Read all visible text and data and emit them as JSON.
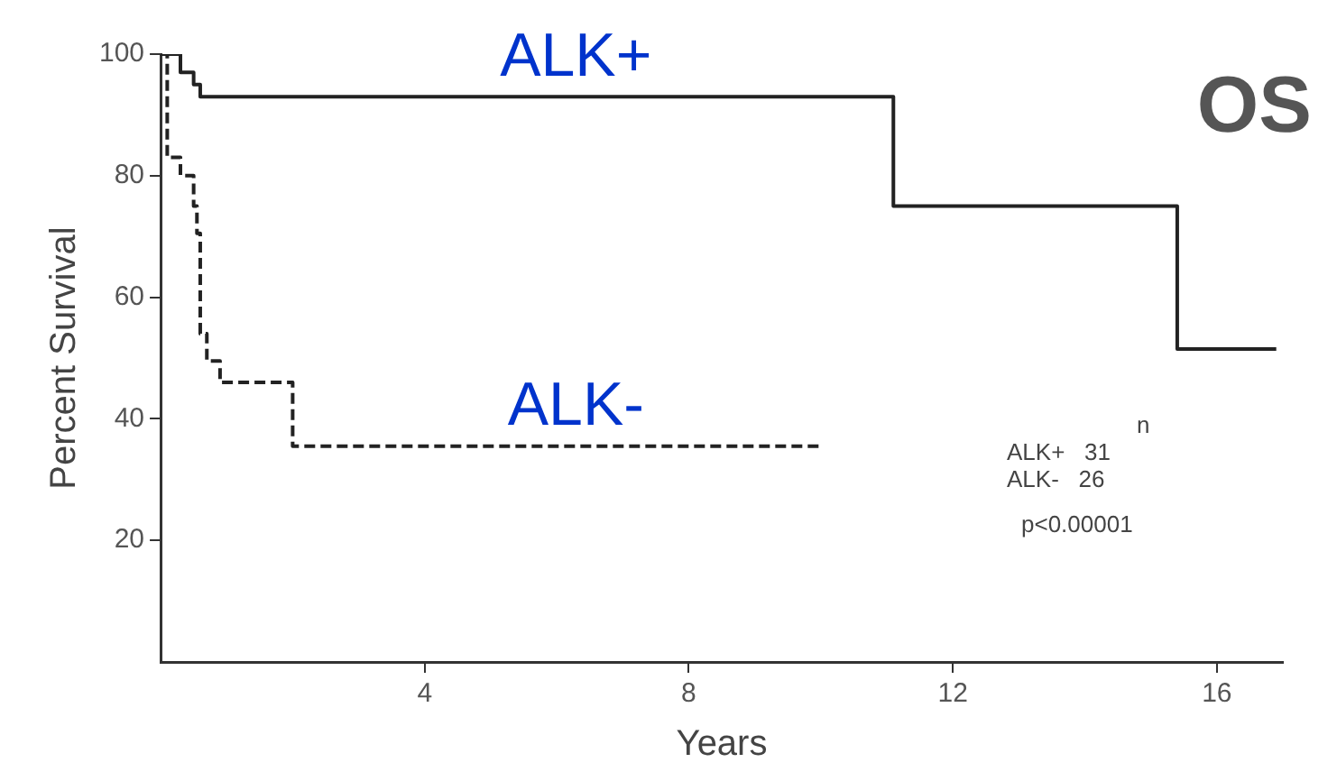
{
  "chart_data": {
    "type": "step",
    "title": "OS",
    "xlabel": "Years",
    "ylabel": "Percent Survival",
    "xlim": [
      0,
      17
    ],
    "xticks": [
      4,
      8,
      12,
      16
    ],
    "ylim": [
      0,
      100
    ],
    "yticks": [
      20,
      40,
      60,
      80,
      100
    ],
    "grid": false,
    "legend": false,
    "marker": "none",
    "series": [
      {
        "name": "ALK+",
        "color": "#222222",
        "line_style": "solid",
        "x": [
          0,
          0.3,
          0.5,
          0.6,
          11.1,
          15.4,
          16.9
        ],
        "values": [
          100,
          97,
          95,
          93,
          75,
          51.5,
          51.5
        ]
      },
      {
        "name": "ALK-",
        "color": "#222222",
        "line_style": "dashed",
        "x": [
          0,
          0.1,
          0.3,
          0.5,
          0.55,
          0.6,
          0.7,
          0.9,
          2.0,
          10.0
        ],
        "values": [
          100,
          83,
          80,
          75,
          70.5,
          54,
          49.5,
          46,
          35.5,
          35.5
        ]
      }
    ],
    "annotations": [
      "n",
      "ALK+   31",
      "ALK-   26",
      "p<0.00001"
    ]
  }
}
